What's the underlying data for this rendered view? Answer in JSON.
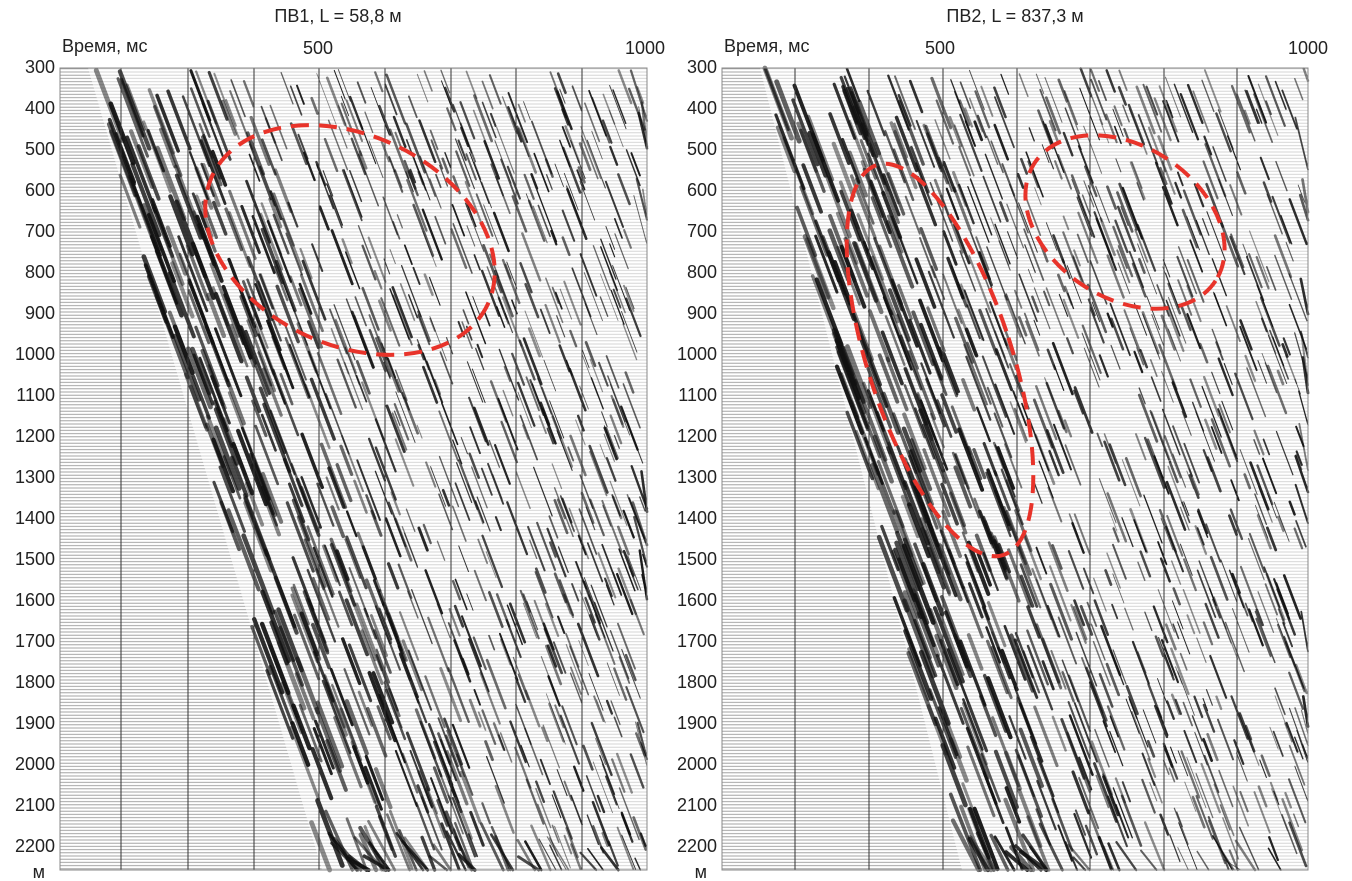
{
  "panels": [
    {
      "title": "ПВ1, L = 58,8 м",
      "y_label": "Время, мс",
      "x_ticks": [
        500,
        1000
      ],
      "y_ticks": [
        300,
        400,
        500,
        600,
        700,
        800,
        900,
        1000,
        1100,
        1200,
        1300,
        1400,
        1500,
        1600,
        1700,
        1800,
        1900,
        2000,
        2100,
        2200
      ],
      "x_unit": "м"
    },
    {
      "title": "ПВ2, L = 837,3 м",
      "y_label": "Время, мс",
      "x_ticks": [
        500,
        1000
      ],
      "y_ticks": [
        300,
        400,
        500,
        600,
        700,
        800,
        900,
        1000,
        1100,
        1200,
        1300,
        1400,
        1500,
        1600,
        1700,
        1800,
        1900,
        2000,
        2100,
        2200
      ],
      "x_unit": "м"
    }
  ]
}
